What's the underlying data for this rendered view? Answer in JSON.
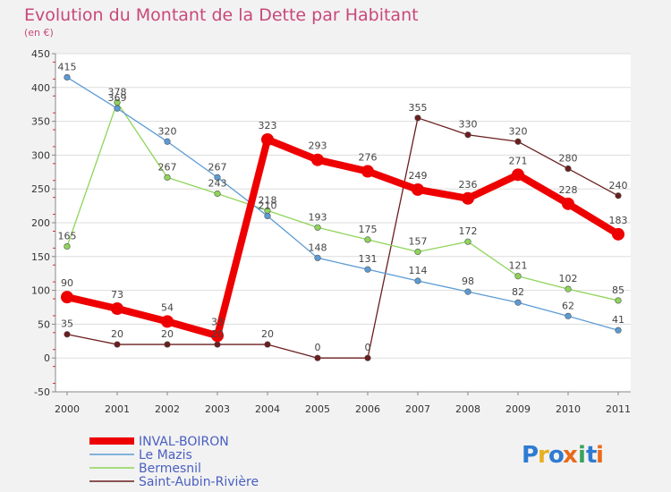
{
  "chart_data": {
    "type": "line",
    "title": "Evolution du Montant de la Dette par Habitant",
    "subtitle": "(en €)",
    "xlabel": "",
    "ylabel": "",
    "categories": [
      "2000",
      "2001",
      "2002",
      "2003",
      "2004",
      "2005",
      "2006",
      "2007",
      "2008",
      "2009",
      "2010",
      "2011"
    ],
    "ylim": [
      -50,
      450
    ],
    "yticks": [
      -50,
      0,
      50,
      100,
      150,
      200,
      250,
      300,
      350,
      400,
      450
    ],
    "grid": true,
    "legend_position": "bottom-left",
    "series": [
      {
        "name": "Saint-Aubin-Rivière",
        "color": "#6b1e1e",
        "emphasis": false,
        "values": [
          35,
          20,
          20,
          20,
          20,
          0,
          0,
          355,
          330,
          320,
          280,
          240
        ]
      },
      {
        "name": "Bermesnil",
        "color": "#8fd45a",
        "emphasis": false,
        "values": [
          165,
          378,
          267,
          243,
          218,
          193,
          175,
          157,
          172,
          121,
          102,
          85
        ]
      },
      {
        "name": "Le Mazis",
        "color": "#5b9bd5",
        "emphasis": false,
        "values": [
          415,
          369,
          320,
          267,
          210,
          148,
          131,
          114,
          98,
          82,
          62,
          41
        ]
      },
      {
        "name": "INVAL-BOIRON",
        "color": "#ee0000",
        "emphasis": true,
        "values": [
          90,
          73,
          54,
          33,
          323,
          293,
          276,
          249,
          236,
          271,
          228,
          183
        ]
      }
    ],
    "legend_order": [
      "INVAL-BOIRON",
      "Le Mazis",
      "Bermesnil",
      "Saint-Aubin-Rivière"
    ]
  },
  "logo": {
    "text": "Proxiti",
    "letters": [
      "P",
      "r",
      "o",
      "x",
      "i",
      "t",
      "i"
    ],
    "colors": [
      "#2e7bd1",
      "#e8b020",
      "#2e7bd1",
      "#e86b1a",
      "#3aa35c",
      "#2e7bd1",
      "#e86b1a"
    ]
  }
}
